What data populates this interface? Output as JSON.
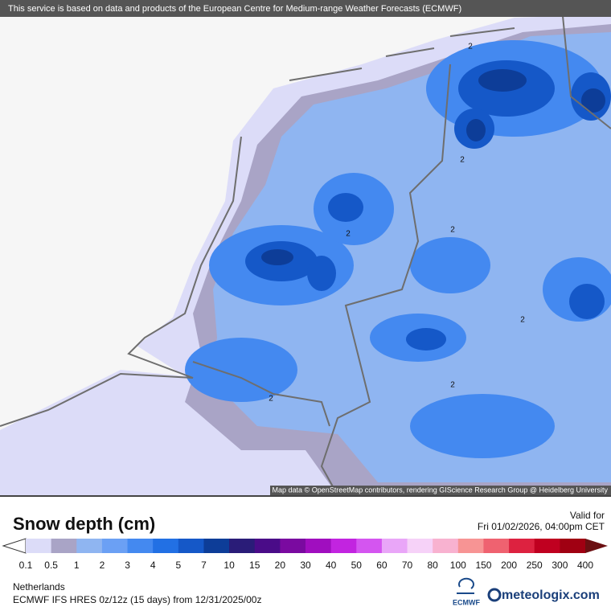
{
  "header": {
    "notice": "This service is based on data and products of the European Centre for Medium-range Weather Forecasts (ECMWF)"
  },
  "map": {
    "contour_labels": [
      "2",
      "2",
      "2",
      "2",
      "2",
      "2",
      "2"
    ],
    "attribution": "Map data © OpenStreetMap contributors, rendering GIScience Research Group @ Heidelberg University"
  },
  "legend": {
    "title": "Snow depth (cm)",
    "valid_label": "Valid for",
    "valid_time": "Fri 01/02/2026, 04:00pm CET",
    "ticks": [
      0.1,
      0.5,
      1,
      2,
      3,
      4,
      5,
      7,
      10,
      15,
      20,
      30,
      40,
      50,
      60,
      70,
      80,
      100,
      150,
      200,
      250,
      300,
      400
    ],
    "colors": [
      "#dcdcf8",
      "#a9a4c6",
      "#8fb5f1",
      "#6ba0f4",
      "#4489f0",
      "#2270e4",
      "#1558c8",
      "#0d3d98",
      "#2a1c78",
      "#4a0c88",
      "#7a0aa0",
      "#a00ebf",
      "#c224e0",
      "#d455f0",
      "#e9a6f8",
      "#f6d2f8",
      "#f8b2d0",
      "#f79494",
      "#ef6270",
      "#dd2240",
      "#c00020",
      "#a00012"
    ],
    "over_color": "#6b0f12"
  },
  "footer": {
    "region": "Netherlands",
    "model": "ECMWF IFS HRES 0z/12z (15 days) from 12/31/2025/00z",
    "ecmwf_logo": "ECMWF",
    "brand": "meteologix.com"
  }
}
